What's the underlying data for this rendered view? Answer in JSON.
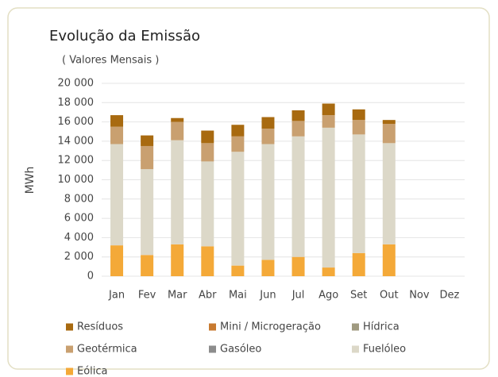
{
  "chart_data": {
    "type": "stacked_bar",
    "title": "Evolução da Emissão",
    "subtitle": "( Valores Mensais )",
    "y_label": "MWh",
    "categories": [
      "Jan",
      "Fev",
      "Mar",
      "Abr",
      "Mai",
      "Jun",
      "Jul",
      "Ago",
      "Set",
      "Out",
      "Nov",
      "Dez"
    ],
    "series": [
      {
        "name": "Resíduos",
        "color": "#a86a10",
        "values": [
          1200,
          1100,
          400,
          1300,
          1200,
          1200,
          1100,
          1200,
          1100,
          400,
          null,
          null
        ]
      },
      {
        "name": "Mini / Microgeração",
        "color": "#c87a30",
        "values": [
          0,
          0,
          0,
          0,
          0,
          0,
          0,
          0,
          0,
          0,
          null,
          null
        ]
      },
      {
        "name": "Hídrica",
        "color": "#a09a80",
        "values": [
          0,
          0,
          0,
          0,
          0,
          0,
          0,
          0,
          0,
          0,
          null,
          null
        ]
      },
      {
        "name": "Geotérmica",
        "color": "#c9a070",
        "values": [
          1800,
          2400,
          1900,
          1900,
          1600,
          1600,
          1600,
          1300,
          1500,
          2000,
          null,
          null
        ]
      },
      {
        "name": "Gasóleo",
        "color": "#8c8c8c",
        "values": [
          0,
          0,
          0,
          0,
          0,
          0,
          0,
          0,
          0,
          0,
          null,
          null
        ]
      },
      {
        "name": "Fuelóleo",
        "color": "#dcd8c8",
        "values": [
          10500,
          8900,
          10800,
          8800,
          11800,
          12000,
          12500,
          14500,
          12300,
          10500,
          null,
          null
        ]
      },
      {
        "name": "Eólica",
        "color": "#f4a938",
        "values": [
          3200,
          2200,
          3300,
          3100,
          1100,
          1700,
          2000,
          900,
          2400,
          3300,
          null,
          null
        ]
      }
    ],
    "ylim": [
      0,
      20000
    ],
    "yticks": [
      0,
      {
        "value": 2000,
        "label": "2 000"
      },
      {
        "value": 4000,
        "label": "4 000"
      },
      {
        "value": 6000,
        "label": "6 000"
      },
      {
        "value": 8000,
        "label": "8 000"
      },
      {
        "value": 10000,
        "label": "10 000"
      },
      {
        "value": 12000,
        "label": "12 000"
      },
      {
        "value": 14000,
        "label": "14 000"
      },
      {
        "value": 16000,
        "label": "16 000"
      },
      {
        "value": 18000,
        "label": "18 000"
      },
      {
        "value": 20000,
        "label": "20 000"
      }
    ],
    "grid": true
  }
}
